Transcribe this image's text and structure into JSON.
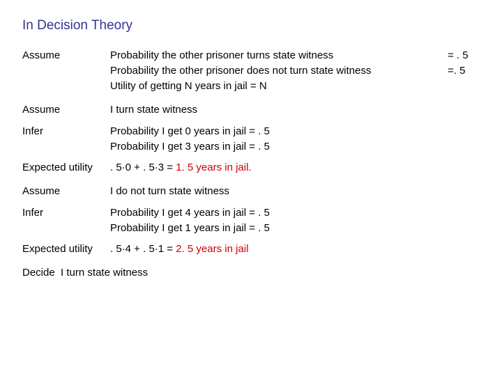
{
  "title": "In Decision Theory",
  "intro": {
    "label": "Assume",
    "line1": "Probability the other prisoner turns state witness",
    "line1val": "= . 5",
    "line2": "Probability the other prisoner does not turn state witness",
    "line2val": "=. 5",
    "line3": "Utility of getting N years in jail = N"
  },
  "case1": {
    "assumeLabel": "Assume",
    "assumeText": "I turn state witness",
    "inferLabel": "Infer",
    "infer1": "Probability  I get 0 years in jail = . 5",
    "infer2": "Probability  I get 3 years in jail = . 5",
    "euLabel": "Expected utility",
    "euPrefix": ". 5·0 + . 5·3 = ",
    "euResult": "1. 5 years in jail."
  },
  "case2": {
    "assumeLabel": "Assume",
    "assumeText": "I do not turn state witness",
    "inferLabel": "Infer",
    "infer1": "Probability  I get 4 years in jail = . 5",
    "infer2": "Probability  I get 1 years in jail = . 5",
    "euLabel": "Expected utility",
    "euPrefix": ". 5·4 + . 5·1 = ",
    "euResult": "2. 5 years in jail"
  },
  "decide": {
    "label": "Decide",
    "text": "I turn state witness"
  }
}
